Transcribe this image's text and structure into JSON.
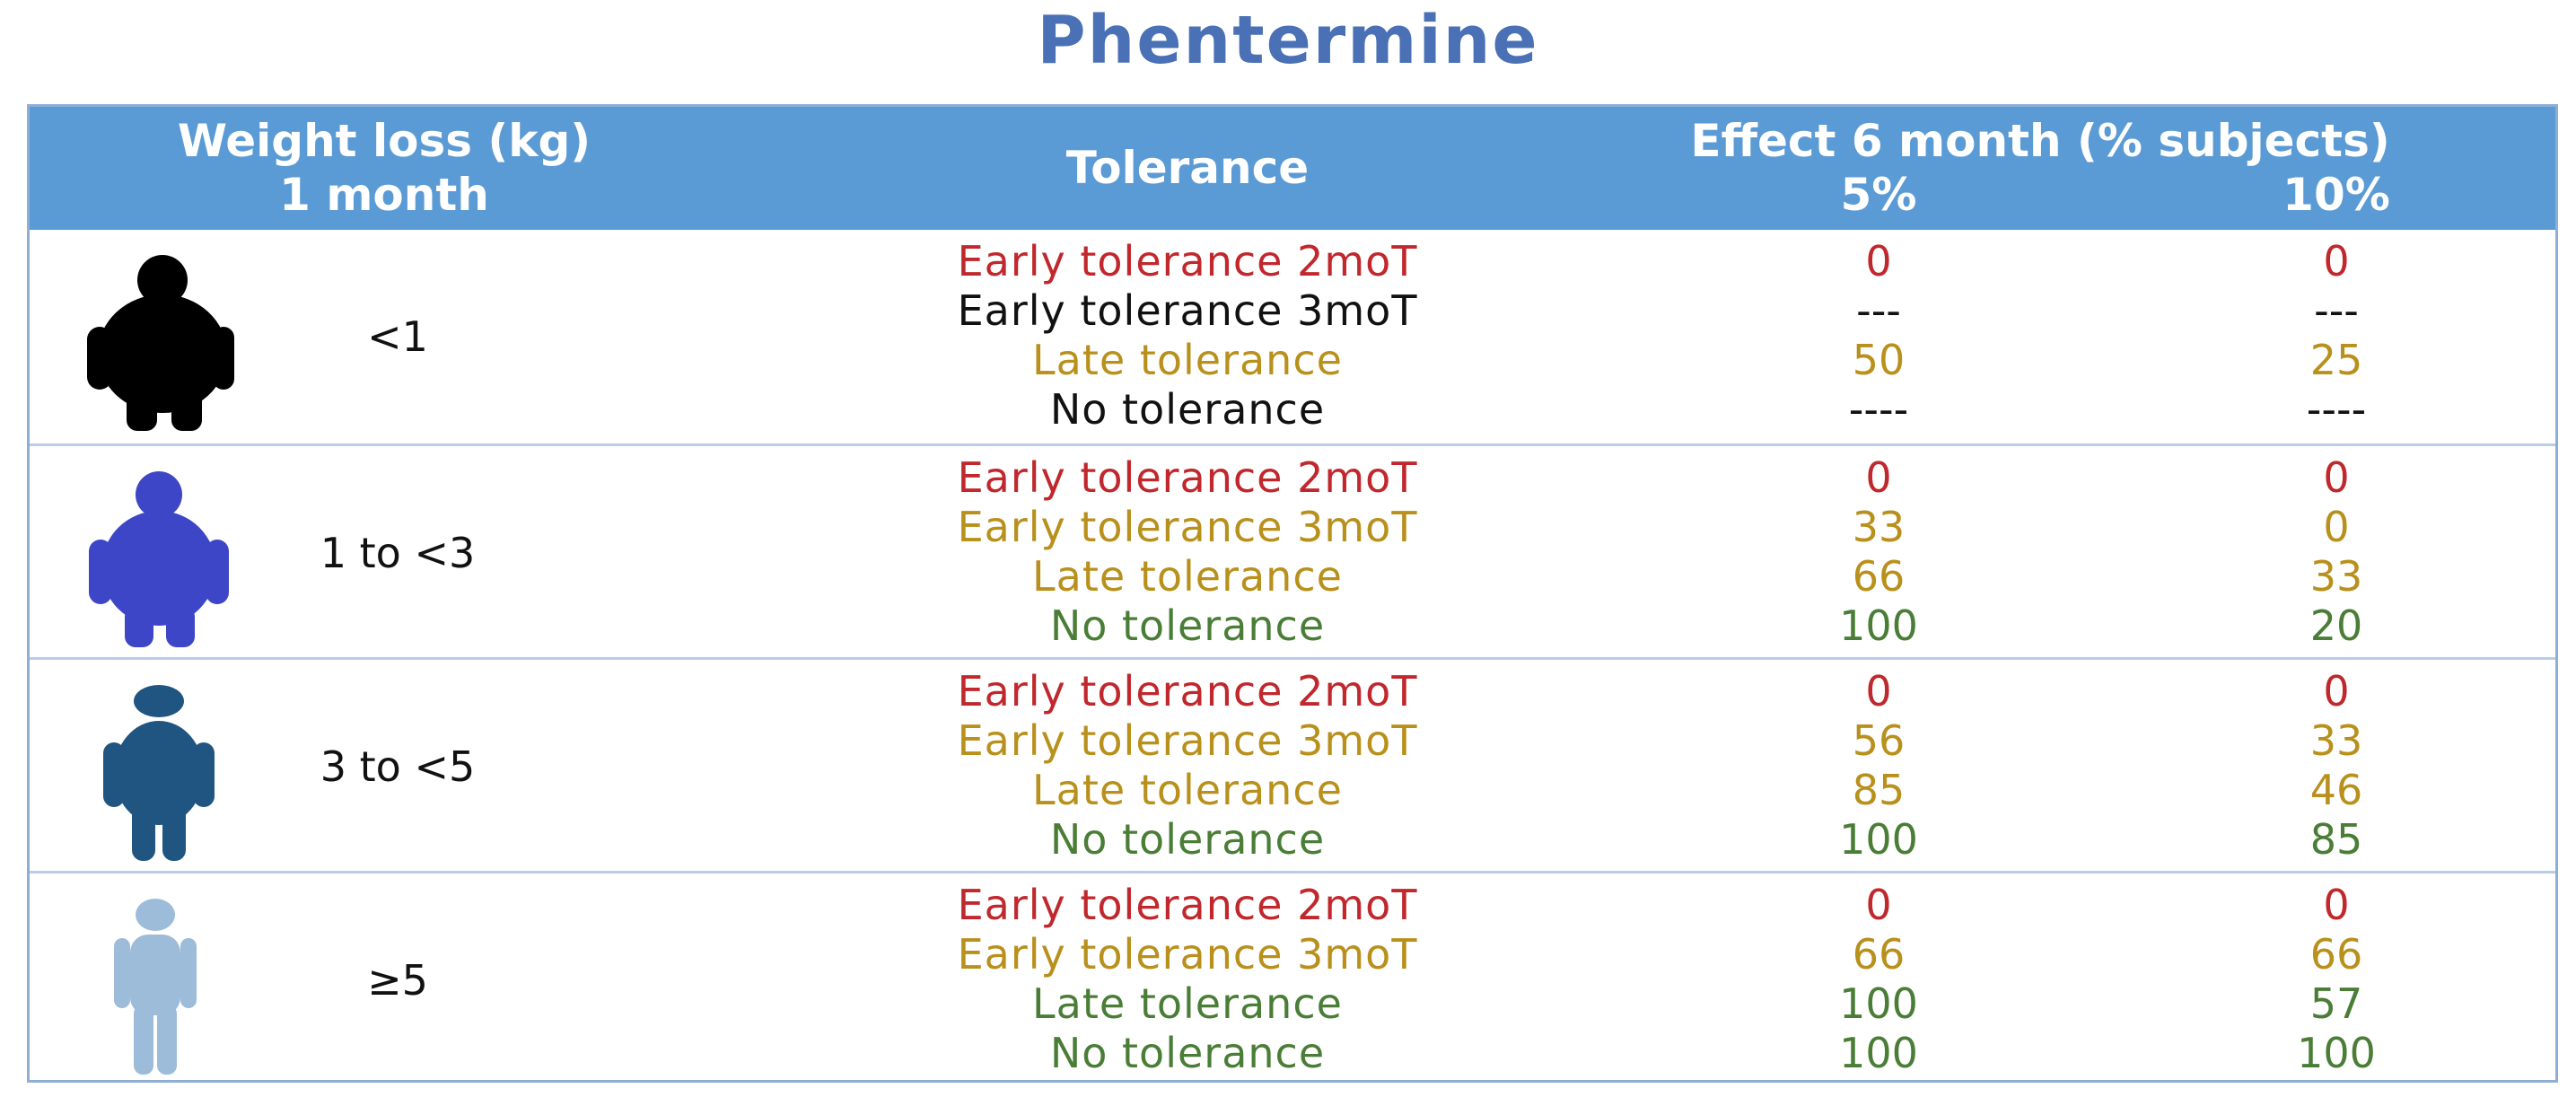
{
  "title": "Phentermine",
  "header": {
    "weight_line1": "Weight loss (kg)",
    "weight_line2": "1 month",
    "tolerance": "Tolerance",
    "effect": "Effect 6 month (% subjects)",
    "pct5": "5%",
    "pct10": "10%"
  },
  "colors": {
    "header_bg": "#5b9bd5",
    "title": "#4a70b5",
    "red": "#c0282d",
    "gold": "#b8901b",
    "green": "#4a7d36",
    "black": "#111111"
  },
  "groups": [
    {
      "weight": "<1",
      "icon": "obese-person-icon-black",
      "rows": [
        {
          "tolerance": "Early tolerance 2moT",
          "v5": "0",
          "v10": "0",
          "color": "red"
        },
        {
          "tolerance": "Early tolerance 3moT",
          "v5": "---",
          "v10": "---",
          "color": "black"
        },
        {
          "tolerance": "Late tolerance",
          "v5": "50",
          "v10": "25",
          "color": "gold"
        },
        {
          "tolerance": "No tolerance",
          "v5": "----",
          "v10": "----",
          "color": "black"
        }
      ]
    },
    {
      "weight": "1 to <3",
      "icon": "overweight-person-icon-blue",
      "rows": [
        {
          "tolerance": "Early tolerance 2moT",
          "v5": "0",
          "v10": "0",
          "color": "red"
        },
        {
          "tolerance": "Early tolerance 3moT",
          "v5": "33",
          "v10": "0",
          "color": "gold"
        },
        {
          "tolerance": "Late tolerance",
          "v5": "66",
          "v10": "33",
          "color": "gold"
        },
        {
          "tolerance": "No tolerance",
          "v5": "100",
          "v10": "20",
          "color": "green"
        }
      ]
    },
    {
      "weight": "3 to <5",
      "icon": "medium-person-icon-darkblue",
      "rows": [
        {
          "tolerance": "Early tolerance 2moT",
          "v5": "0",
          "v10": "0",
          "color": "red"
        },
        {
          "tolerance": "Early tolerance 3moT",
          "v5": "56",
          "v10": "33",
          "color": "gold"
        },
        {
          "tolerance": "Late tolerance",
          "v5": "85",
          "v10": "46",
          "color": "gold"
        },
        {
          "tolerance": "No tolerance",
          "v5": "100",
          "v10": "85",
          "color": "green"
        }
      ]
    },
    {
      "weight": "≥5",
      "icon": "slim-person-icon-lightblue",
      "rows": [
        {
          "tolerance": "Early tolerance 2moT",
          "v5": "0",
          "v10": "0",
          "color": "red"
        },
        {
          "tolerance": "Early tolerance 3moT",
          "v5": "66",
          "v10": "66",
          "color": "gold"
        },
        {
          "tolerance": "Late tolerance",
          "v5": "100",
          "v10": "57",
          "color": "green"
        },
        {
          "tolerance": "No tolerance",
          "v5": "100",
          "v10": "100",
          "color": "green"
        }
      ]
    }
  ]
}
